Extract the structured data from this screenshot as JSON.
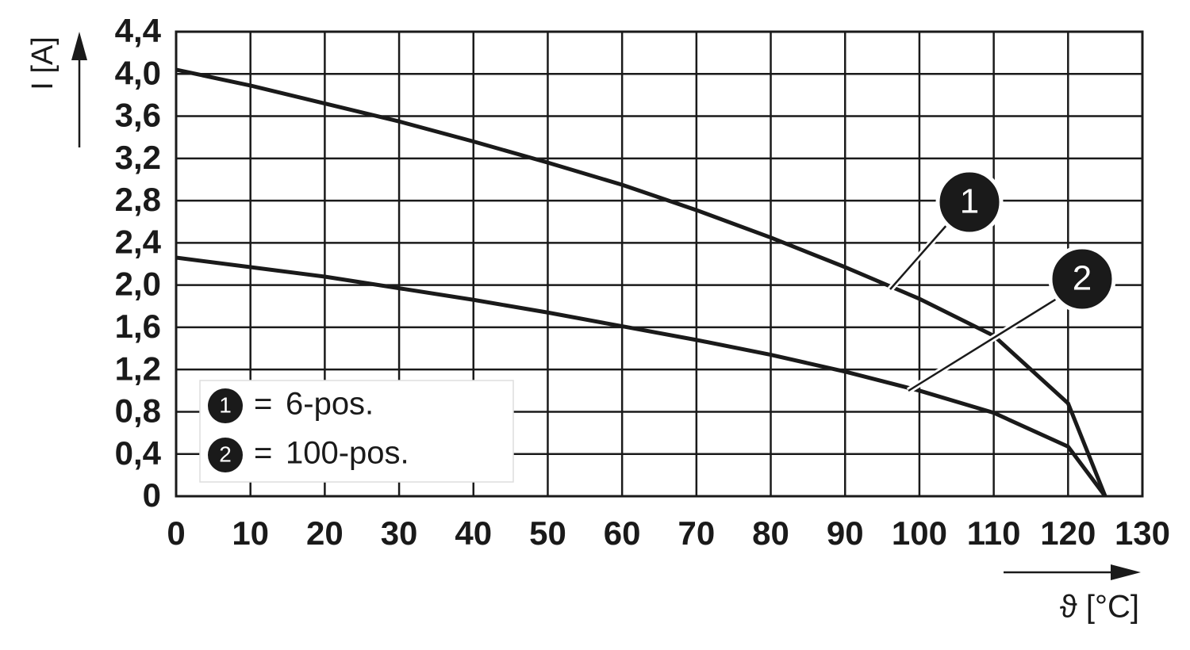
{
  "chart_data": {
    "type": "line",
    "y_label": "I [A]",
    "x_label": "ϑ [°C]",
    "xlim": [
      0,
      130
    ],
    "ylim": [
      0,
      4.4
    ],
    "xticks": [
      0,
      10,
      20,
      30,
      40,
      50,
      60,
      70,
      80,
      90,
      100,
      110,
      120,
      130
    ],
    "yticks": [
      0,
      {
        "value": 0.4,
        "label": "0,4"
      },
      {
        "value": 0.8,
        "label": "0,8"
      },
      {
        "value": 1.2,
        "label": "1,2"
      },
      {
        "value": 1.6,
        "label": "1,6"
      },
      {
        "value": 2.0,
        "label": "2,0"
      },
      {
        "value": 2.4,
        "label": "2,4"
      },
      {
        "value": 2.8,
        "label": "2,8"
      },
      {
        "value": 3.2,
        "label": "3,2"
      },
      {
        "value": 3.6,
        "label": "3,6"
      },
      {
        "value": 4.0,
        "label": "4,0"
      },
      {
        "value": 4.4,
        "label": "4,4"
      }
    ],
    "grid": true,
    "legend_symbol": "=",
    "x": [
      0,
      10,
      20,
      30,
      40,
      50,
      60,
      70,
      80,
      90,
      100,
      110,
      120,
      125
    ],
    "series": [
      {
        "name": "6-pos.",
        "marker": "1",
        "color": "#1a1a1a",
        "values": [
          4.04,
          3.89,
          3.72,
          3.55,
          3.36,
          3.16,
          2.95,
          2.71,
          2.45,
          2.17,
          1.87,
          1.52,
          0.88,
          0
        ]
      },
      {
        "name": "100-pos.",
        "marker": "2",
        "color": "#1a1a1a",
        "values": [
          2.26,
          2.17,
          2.08,
          1.97,
          1.86,
          1.74,
          1.61,
          1.48,
          1.34,
          1.18,
          1.0,
          0.79,
          0.47,
          0
        ]
      }
    ]
  }
}
